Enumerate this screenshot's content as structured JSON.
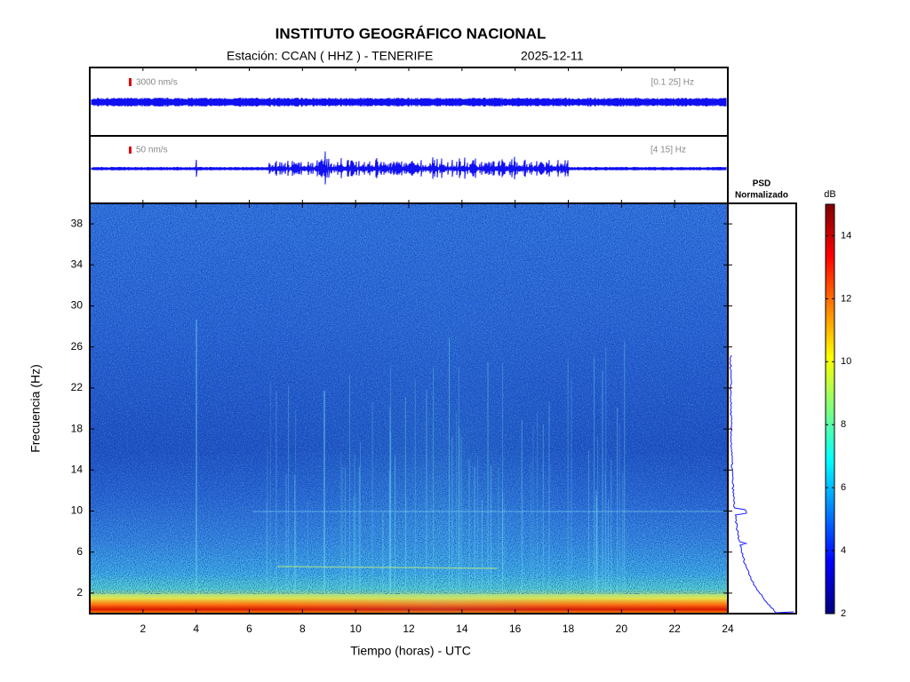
{
  "chart_data": {
    "type": "spectrogram",
    "title": "INSTITUTO GEOGRÁFICO NACIONAL",
    "subtitle": "Estación:  CCAN ( HHZ ) - TENERIFE",
    "date": "2025-12-11",
    "panels": [
      {
        "scale_label": "3000 nm/s",
        "band_label": "[0.1 25] Hz"
      },
      {
        "scale_label": "50 nm/s",
        "band_label": "[4 15] Hz"
      }
    ],
    "xlabel": "Tiempo (horas) - UTC",
    "ylabel": "Frecuencia  (Hz)",
    "xlim": [
      0,
      24
    ],
    "xticks": [
      2,
      4,
      6,
      8,
      10,
      12,
      14,
      16,
      18,
      20,
      22,
      24
    ],
    "ylim": [
      0,
      40
    ],
    "yticks": [
      2,
      6,
      10,
      14,
      18,
      22,
      26,
      30,
      34,
      38
    ],
    "psd_title": [
      "PSD",
      "Normalizado"
    ],
    "colorbar": {
      "label": "dB",
      "lim": [
        2,
        15
      ],
      "ticks": [
        2,
        4,
        6,
        8,
        10,
        12,
        14
      ]
    }
  }
}
